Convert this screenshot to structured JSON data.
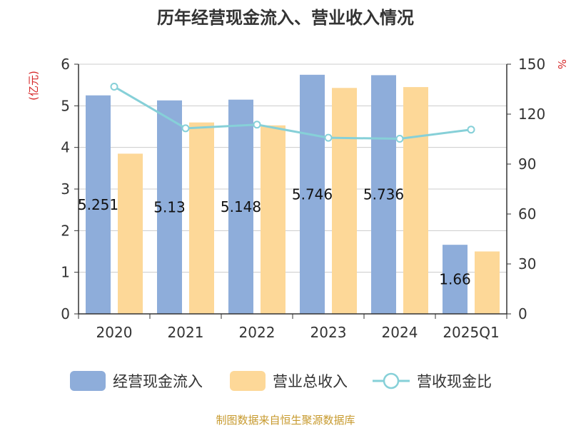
{
  "source_note": "制图数据来自恒生聚源数据库",
  "colors": {
    "bar1": "#8eadda",
    "bar2": "#fdd898",
    "line": "#86d0d8",
    "unit": "#d62728",
    "source": "#c79a2e"
  },
  "chart_data": {
    "type": "bar",
    "title": "历年经营现金流入、营业收入情况",
    "categories": [
      "2020",
      "2021",
      "2022",
      "2023",
      "2024",
      "2025Q1"
    ],
    "y_left": {
      "unit": "(亿元)",
      "ylim": [
        0,
        6
      ],
      "ticks": [
        "0",
        "1",
        "2",
        "3",
        "4",
        "5",
        "6"
      ]
    },
    "y_right": {
      "unit": "%",
      "ylim": [
        0,
        150
      ],
      "ticks": [
        "0",
        "30",
        "60",
        "90",
        "120",
        "150"
      ]
    },
    "series": [
      {
        "name": "经营现金流入",
        "kind": "bar",
        "axis": "left",
        "values": [
          5.251,
          5.13,
          5.148,
          5.746,
          5.736,
          1.66
        ],
        "labels": [
          "5.251",
          "5.13",
          "5.148",
          "5.746",
          "5.736",
          "1.66"
        ]
      },
      {
        "name": "营业总收入",
        "kind": "bar",
        "axis": "left",
        "values": [
          3.85,
          4.6,
          4.53,
          5.43,
          5.45,
          1.5
        ]
      },
      {
        "name": "营收现金比",
        "kind": "line",
        "axis": "right",
        "values": [
          136.5,
          111.5,
          113.7,
          105.8,
          105.2,
          110.7
        ]
      }
    ],
    "grid": true,
    "legend": "bottom"
  }
}
